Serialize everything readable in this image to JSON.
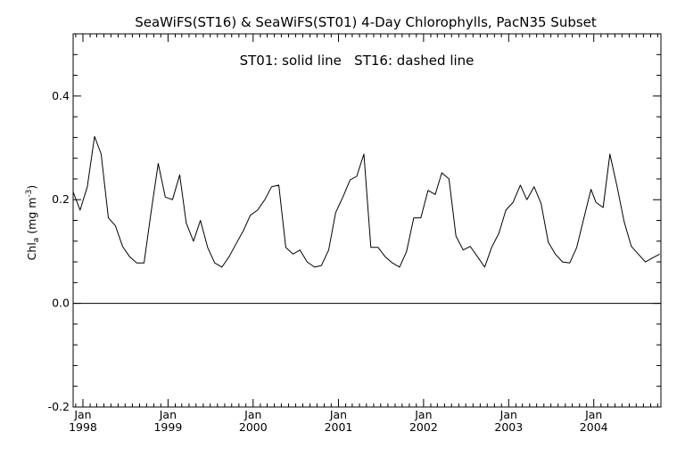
{
  "chart_data": {
    "type": "line",
    "title": "SeaWiFS(ST16) & SeaWiFS(ST01) 4-Day Chlorophylls, PacN35 Subset",
    "annotation": "ST01: solid line   ST16: dashed line",
    "ylabel": {
      "main": "Chl",
      "sub": "a",
      "unit_open": " (mg m",
      "unit_sup": "-3",
      "unit_close": ")"
    },
    "xlabel": "",
    "ylim": [
      -0.2,
      0.52
    ],
    "xlim": [
      "1997-11-20",
      "2004-10-15"
    ],
    "grid": false,
    "y_ticks": [
      {
        "value": -0.2,
        "label": "-0.2"
      },
      {
        "value": 0.0,
        "label": "0.0"
      },
      {
        "value": 0.2,
        "label": "0.2"
      },
      {
        "value": 0.4,
        "label": "0.4"
      }
    ],
    "x_ticks": [
      {
        "date": "1998-01-01",
        "month": "Jan",
        "year": "1998"
      },
      {
        "date": "1999-01-01",
        "month": "Jan",
        "year": "1999"
      },
      {
        "date": "2000-01-01",
        "month": "Jan",
        "year": "2000"
      },
      {
        "date": "2001-01-01",
        "month": "Jan",
        "year": "2001"
      },
      {
        "date": "2002-01-01",
        "month": "Jan",
        "year": "2002"
      },
      {
        "date": "2003-01-01",
        "month": "Jan",
        "year": "2003"
      },
      {
        "date": "2004-01-01",
        "month": "Jan",
        "year": "2004"
      }
    ],
    "reference_line_y": 0.0,
    "series": [
      {
        "style": "solid",
        "points": [
          [
            "1997-11-20",
            0.215
          ],
          [
            "1997-12-20",
            0.18
          ],
          [
            "1998-01-20",
            0.225
          ],
          [
            "1998-02-20",
            0.322
          ],
          [
            "1998-03-20",
            0.288
          ],
          [
            "1998-04-20",
            0.165
          ],
          [
            "1998-05-20",
            0.15
          ],
          [
            "1998-06-20",
            0.11
          ],
          [
            "1998-07-20",
            0.09
          ],
          [
            "1998-08-20",
            0.078
          ],
          [
            "1998-09-20",
            0.078
          ],
          [
            "1998-10-20",
            0.175
          ],
          [
            "1998-11-20",
            0.27
          ],
          [
            "1998-12-20",
            0.205
          ],
          [
            "1999-01-20",
            0.2
          ],
          [
            "1999-02-20",
            0.248
          ],
          [
            "1999-03-20",
            0.155
          ],
          [
            "1999-04-20",
            0.12
          ],
          [
            "1999-05-20",
            0.16
          ],
          [
            "1999-06-20",
            0.108
          ],
          [
            "1999-07-20",
            0.078
          ],
          [
            "1999-08-20",
            0.07
          ],
          [
            "1999-09-20",
            0.09
          ],
          [
            "1999-10-20",
            0.115
          ],
          [
            "1999-11-20",
            0.14
          ],
          [
            "1999-12-20",
            0.17
          ],
          [
            "2000-01-20",
            0.18
          ],
          [
            "2000-02-20",
            0.2
          ],
          [
            "2000-03-20",
            0.225
          ],
          [
            "2000-04-20",
            0.228
          ],
          [
            "2000-05-20",
            0.108
          ],
          [
            "2000-06-20",
            0.095
          ],
          [
            "2000-07-20",
            0.103
          ],
          [
            "2000-08-20",
            0.08
          ],
          [
            "2000-09-20",
            0.07
          ],
          [
            "2000-10-20",
            0.073
          ],
          [
            "2000-11-20",
            0.103
          ],
          [
            "2000-12-20",
            0.175
          ],
          [
            "2001-01-20",
            0.205
          ],
          [
            "2001-02-20",
            0.238
          ],
          [
            "2001-03-20",
            0.245
          ],
          [
            "2001-04-20",
            0.288
          ],
          [
            "2001-05-20",
            0.108
          ],
          [
            "2001-06-20",
            0.108
          ],
          [
            "2001-07-20",
            0.09
          ],
          [
            "2001-08-20",
            0.078
          ],
          [
            "2001-09-20",
            0.07
          ],
          [
            "2001-10-20",
            0.1
          ],
          [
            "2001-11-20",
            0.165
          ],
          [
            "2001-12-20",
            0.165
          ],
          [
            "2002-01-20",
            0.218
          ],
          [
            "2002-02-20",
            0.21
          ],
          [
            "2002-03-20",
            0.252
          ],
          [
            "2002-04-20",
            0.24
          ],
          [
            "2002-05-20",
            0.13
          ],
          [
            "2002-06-20",
            0.103
          ],
          [
            "2002-07-20",
            0.11
          ],
          [
            "2002-08-20",
            0.09
          ],
          [
            "2002-09-20",
            0.07
          ],
          [
            "2002-10-20",
            0.108
          ],
          [
            "2002-11-20",
            0.135
          ],
          [
            "2002-12-20",
            0.18
          ],
          [
            "2003-01-20",
            0.195
          ],
          [
            "2003-02-20",
            0.228
          ],
          [
            "2003-03-20",
            0.2
          ],
          [
            "2003-04-20",
            0.225
          ],
          [
            "2003-05-20",
            0.193
          ],
          [
            "2003-06-20",
            0.118
          ],
          [
            "2003-07-20",
            0.095
          ],
          [
            "2003-08-20",
            0.08
          ],
          [
            "2003-09-20",
            0.078
          ],
          [
            "2003-10-20",
            0.108
          ],
          [
            "2003-11-20",
            0.165
          ],
          [
            "2003-12-20",
            0.22
          ],
          [
            "2004-01-10",
            0.195
          ],
          [
            "2004-02-10",
            0.185
          ],
          [
            "2004-03-10",
            0.288
          ],
          [
            "2004-04-10",
            0.225
          ],
          [
            "2004-05-10",
            0.158
          ],
          [
            "2004-06-10",
            0.11
          ],
          [
            "2004-07-10",
            0.095
          ],
          [
            "2004-08-10",
            0.08
          ],
          [
            "2004-09-10",
            0.088
          ],
          [
            "2004-10-10",
            0.095
          ]
        ]
      }
    ]
  }
}
